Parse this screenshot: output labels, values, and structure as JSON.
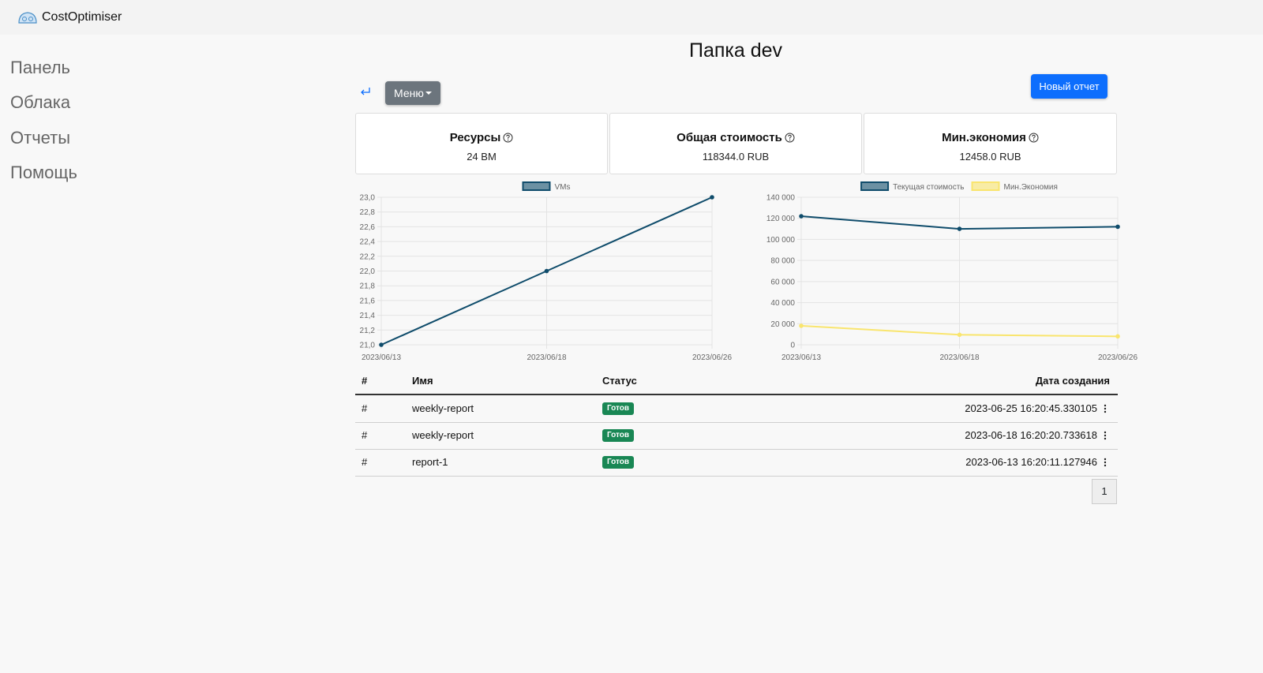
{
  "header": {
    "brand": "CostOptimiser"
  },
  "nav": [
    "Панель",
    "Облака",
    "Отчеты",
    "Помощь"
  ],
  "page": {
    "title": "Папка dev",
    "menu_button": "Меню",
    "new_report_button": "Новый отчет"
  },
  "cards": [
    {
      "title": "Ресурсы",
      "value": "24 ВМ"
    },
    {
      "title": "Общая стоимость",
      "value": "118344.0 RUB"
    },
    {
      "title": "Мин.экономия",
      "value": "12458.0 RUB"
    }
  ],
  "chart_data": [
    {
      "type": "line",
      "categories": [
        "2023/06/13",
        "2023/06/18",
        "2023/06/26"
      ],
      "series": [
        {
          "name": "VMs",
          "color": "#0f4c6b",
          "values": [
            21,
            22,
            23
          ]
        }
      ],
      "ylim": [
        21,
        23
      ],
      "yticks": [
        {
          "value": 21,
          "label": "21,0"
        },
        {
          "value": 21.2,
          "label": "21,2"
        },
        {
          "value": 21.4,
          "label": "21,4"
        },
        {
          "value": 21.6,
          "label": "21,6"
        },
        {
          "value": 21.8,
          "label": "21,8"
        },
        {
          "value": 22,
          "label": "22,0"
        },
        {
          "value": 22.2,
          "label": "22,2"
        },
        {
          "value": 22.4,
          "label": "22,4"
        },
        {
          "value": 22.6,
          "label": "22,6"
        },
        {
          "value": 22.8,
          "label": "22,8"
        },
        {
          "value": 23,
          "label": "23,0"
        }
      ],
      "grid": true,
      "legend": "top"
    },
    {
      "type": "line",
      "categories": [
        "2023/06/13",
        "2023/06/18",
        "2023/06/26"
      ],
      "series": [
        {
          "name": "Текущая стоимость",
          "color": "#0f4c6b",
          "values": [
            122000,
            110000,
            112000
          ]
        },
        {
          "name": "Мин.Экономия",
          "color": "#f9e56e",
          "values": [
            18000,
            9500,
            8000
          ]
        }
      ],
      "ylim": [
        0,
        140000
      ],
      "yticks": [
        0,
        {
          "value": 20000,
          "label": "20 000"
        },
        {
          "value": 40000,
          "label": "40 000"
        },
        {
          "value": 60000,
          "label": "60 000"
        },
        {
          "value": 80000,
          "label": "80 000"
        },
        {
          "value": 100000,
          "label": "100 000"
        },
        {
          "value": 120000,
          "label": "120 000"
        },
        {
          "value": 140000,
          "label": "140 000"
        }
      ],
      "grid": true,
      "legend": "top"
    }
  ],
  "table": {
    "columns": [
      "#",
      "Имя",
      "Статус",
      "Дата создания"
    ],
    "rows": [
      [
        "#",
        "weekly-report",
        "Готов",
        "2023-06-25 16:20:45.330105"
      ],
      [
        "#",
        "weekly-report",
        "Готов",
        "2023-06-18 16:20:20.733618"
      ],
      [
        "#",
        "report-1",
        "Готов",
        "2023-06-13 16:20:11.127946"
      ]
    ]
  },
  "pagination": [
    "1"
  ]
}
